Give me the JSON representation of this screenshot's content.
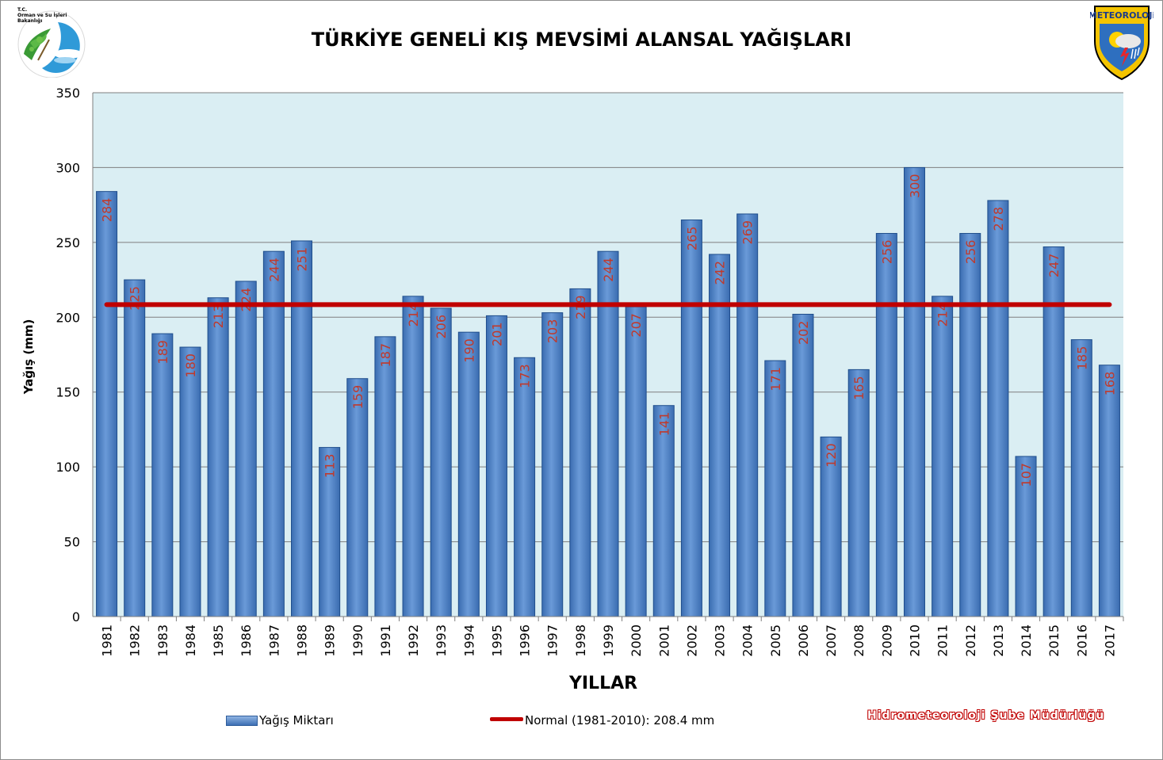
{
  "chart_data": {
    "type": "bar",
    "title": "TÜRKİYE GENELİ  KIŞ MEVSİMİ ALANSAL YAĞIŞLARI",
    "xlabel": "YILLAR",
    "ylabel": "Yağış (mm)",
    "ylim": [
      0,
      350
    ],
    "yticks": [
      0,
      50,
      100,
      150,
      200,
      250,
      300,
      350
    ],
    "grid": true,
    "legend_position": "bottom",
    "categories": [
      "1981",
      "1982",
      "1983",
      "1984",
      "1985",
      "1986",
      "1987",
      "1988",
      "1989",
      "1990",
      "1991",
      "1992",
      "1993",
      "1994",
      "1995",
      "1996",
      "1997",
      "1998",
      "1999",
      "2000",
      "2001",
      "2002",
      "2003",
      "2004",
      "2005",
      "2006",
      "2007",
      "2008",
      "2009",
      "2010",
      "2011",
      "2012",
      "2013",
      "2014",
      "2015",
      "2016",
      "2017"
    ],
    "series": [
      {
        "name": "Yağış Miktarı",
        "type": "bar",
        "color": "#4f81bd",
        "values": [
          284,
          225,
          189,
          180,
          213,
          224,
          244,
          251,
          113,
          159,
          187,
          214,
          206,
          190,
          201,
          173,
          203,
          219,
          244,
          207,
          141,
          265,
          242,
          269,
          171,
          202,
          120,
          165,
          256,
          300,
          214,
          256,
          278,
          107,
          247,
          185,
          168
        ],
        "label_color": "#c0392b"
      },
      {
        "name": "Normal (1981-2010): 208.4 mm",
        "type": "line",
        "color": "#c00000",
        "value": 208.4
      }
    ],
    "plot_background": "#daeef3"
  },
  "logos": {
    "left_text": [
      "T.C.",
      "Orman ve Su İşleri",
      "Bakanlığı"
    ],
    "right_text": "METEOROLOJi"
  },
  "credit": "Hidrometeoroloji Şube Müdürlüğü"
}
